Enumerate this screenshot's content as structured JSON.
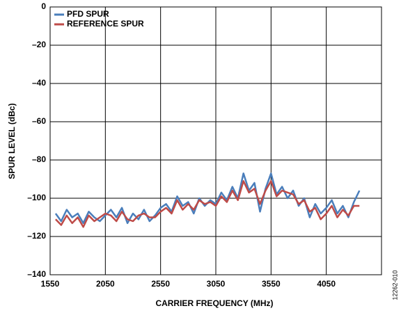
{
  "chart_data": {
    "type": "line",
    "xlabel": "CARRIER FREQUENCY (MHz)",
    "ylabel": "SPUR LEVEL (dBc)",
    "side_note": "12262-010",
    "x": [
      1600,
      1650,
      1700,
      1750,
      1800,
      1850,
      1900,
      1950,
      2000,
      2050,
      2100,
      2150,
      2200,
      2250,
      2300,
      2350,
      2400,
      2450,
      2500,
      2550,
      2600,
      2650,
      2700,
      2750,
      2800,
      2850,
      2900,
      2950,
      3000,
      3050,
      3100,
      3150,
      3200,
      3250,
      3300,
      3350,
      3400,
      3450,
      3500,
      3550,
      3600,
      3650,
      3700,
      3750,
      3800,
      3850,
      3900,
      3950,
      4000,
      4050,
      4100,
      4150,
      4200,
      4250,
      4300,
      4350
    ],
    "series": [
      {
        "name": "PFD SPUR",
        "color": "#4a7ebb",
        "values": [
          -108,
          -112,
          -106,
          -110,
          -108,
          -113,
          -107,
          -110,
          -112,
          -109,
          -106,
          -110,
          -105,
          -113,
          -108,
          -111,
          -106,
          -112,
          -109,
          -105,
          -103,
          -107,
          -99,
          -104,
          -102,
          -108,
          -100,
          -104,
          -101,
          -103,
          -97,
          -101,
          -94,
          -100,
          -87,
          -96,
          -92,
          -107,
          -95,
          -87,
          -98,
          -94,
          -100,
          -96,
          -104,
          -100,
          -110,
          -103,
          -108,
          -105,
          -101,
          -108,
          -104,
          -110,
          -102,
          -96
        ]
      },
      {
        "name": "REFERENCE SPUR",
        "color": "#be4b48",
        "values": [
          -111,
          -114,
          -109,
          -113,
          -110,
          -115,
          -109,
          -112,
          -110,
          -108,
          -109,
          -112,
          -107,
          -111,
          -112,
          -109,
          -108,
          -110,
          -110,
          -107,
          -105,
          -108,
          -101,
          -106,
          -103,
          -106,
          -101,
          -103,
          -102,
          -104,
          -99,
          -102,
          -96,
          -101,
          -91,
          -97,
          -95,
          -103,
          -96,
          -91,
          -99,
          -96,
          -97,
          -98,
          -103,
          -101,
          -107,
          -105,
          -111,
          -108,
          -104,
          -110,
          -106,
          -109,
          -104,
          -104
        ]
      }
    ],
    "xlim": [
      1550,
      4550
    ],
    "xticks": [
      1550,
      2050,
      2550,
      3050,
      3550,
      4050
    ],
    "ylim": [
      -140,
      0
    ],
    "yticks": [
      {
        "value": -140,
        "label": "–140"
      },
      {
        "value": -120,
        "label": "–120"
      },
      {
        "value": -100,
        "label": "–100"
      },
      {
        "value": -80,
        "label": "–80"
      },
      {
        "value": -60,
        "label": "–60"
      },
      {
        "value": -40,
        "label": "–40"
      },
      {
        "value": -20,
        "label": "–20"
      },
      0
    ],
    "grid": true,
    "legend": "upper left"
  }
}
